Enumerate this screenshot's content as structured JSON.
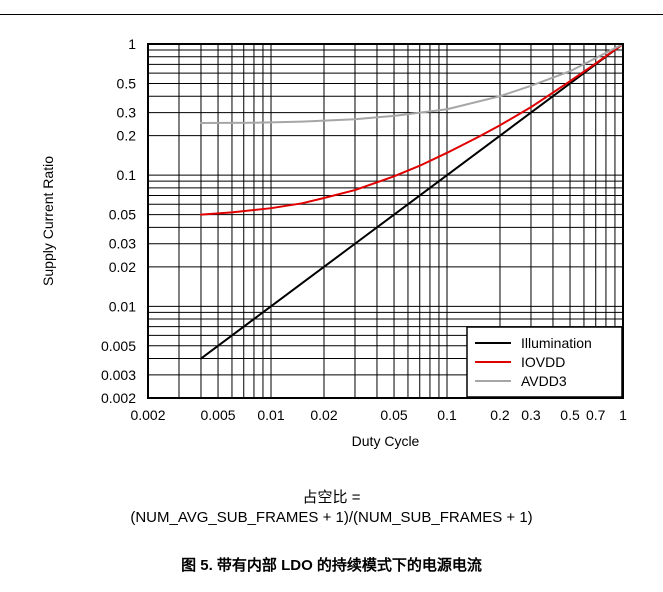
{
  "note": {
    "line1": "占空比 =",
    "line2": "(NUM_AVG_SUB_FRAMES + 1)/(NUM_SUB_FRAMES + 1)"
  },
  "caption": "图 5. 带有内部 LDO 的持续模式下的电源电流",
  "chart_data": {
    "type": "line",
    "title": "",
    "xlabel": "Duty Cycle",
    "ylabel": "Supply Current Ratio",
    "xscale": "log",
    "yscale": "log",
    "xlim": [
      0.002,
      1
    ],
    "ylim": [
      0.002,
      1
    ],
    "grid": true,
    "legend_position": "bottom-right",
    "x_tick_labels": [
      {
        "value": 0.002,
        "label": "0.002"
      },
      {
        "value": 0.005,
        "label": "0.005"
      },
      {
        "value": 0.01,
        "label": "0.01"
      },
      {
        "value": 0.02,
        "label": "0.02"
      },
      {
        "value": 0.05,
        "label": "0.05"
      },
      {
        "value": 0.1,
        "label": "0.1"
      },
      {
        "value": 0.2,
        "label": "0.2"
      },
      {
        "value": 0.3,
        "label": "0.3"
      },
      {
        "value": 0.5,
        "label": "0.5"
      },
      {
        "value": 0.7,
        "label": "0.7"
      },
      {
        "value": 1,
        "label": "1"
      }
    ],
    "y_tick_labels": [
      {
        "value": 0.002,
        "label": "0.002"
      },
      {
        "value": 0.003,
        "label": "0.003"
      },
      {
        "value": 0.005,
        "label": "0.005"
      },
      {
        "value": 0.01,
        "label": "0.01"
      },
      {
        "value": 0.02,
        "label": "0.02"
      },
      {
        "value": 0.03,
        "label": "0.03"
      },
      {
        "value": 0.05,
        "label": "0.05"
      },
      {
        "value": 0.1,
        "label": "0.1"
      },
      {
        "value": 0.2,
        "label": "0.2"
      },
      {
        "value": 0.3,
        "label": "0.3"
      },
      {
        "value": 0.5,
        "label": "0.5"
      },
      {
        "value": 1,
        "label": "1"
      }
    ],
    "series": [
      {
        "name": "Illumination",
        "color": "#000000",
        "points": [
          [
            0.004,
            0.004
          ],
          [
            0.01,
            0.01
          ],
          [
            0.03,
            0.03
          ],
          [
            0.1,
            0.1
          ],
          [
            0.3,
            0.3
          ],
          [
            1,
            1
          ]
        ]
      },
      {
        "name": "IOVDD",
        "color": "#e00000",
        "points": [
          [
            0.004,
            0.05
          ],
          [
            0.006,
            0.052
          ],
          [
            0.01,
            0.056
          ],
          [
            0.015,
            0.061
          ],
          [
            0.02,
            0.067
          ],
          [
            0.03,
            0.077
          ],
          [
            0.05,
            0.098
          ],
          [
            0.07,
            0.118
          ],
          [
            0.1,
            0.148
          ],
          [
            0.15,
            0.195
          ],
          [
            0.2,
            0.24
          ],
          [
            0.3,
            0.33
          ],
          [
            0.5,
            0.52
          ],
          [
            0.7,
            0.71
          ],
          [
            1,
            1
          ]
        ]
      },
      {
        "name": "AVDD3",
        "color": "#a6a6a6",
        "points": [
          [
            0.004,
            0.25
          ],
          [
            0.008,
            0.251
          ],
          [
            0.015,
            0.256
          ],
          [
            0.03,
            0.267
          ],
          [
            0.05,
            0.283
          ],
          [
            0.1,
            0.318
          ],
          [
            0.2,
            0.4
          ],
          [
            0.3,
            0.48
          ],
          [
            0.5,
            0.62
          ],
          [
            0.7,
            0.78
          ],
          [
            1,
            1
          ]
        ]
      }
    ]
  }
}
